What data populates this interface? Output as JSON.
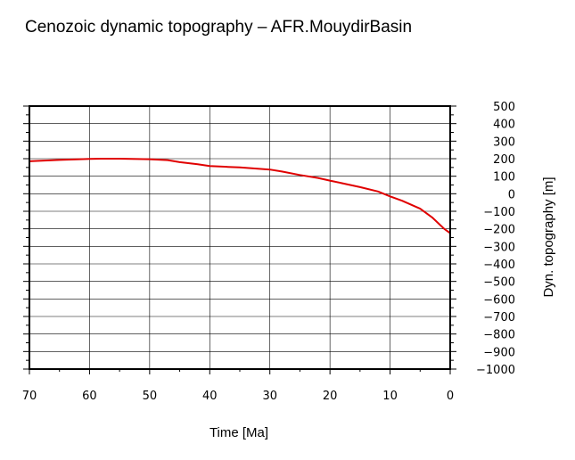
{
  "chart_data": {
    "type": "line",
    "title": "Cenozoic dynamic topography – AFR.MouydirBasin",
    "xlabel": "Time [Ma]",
    "ylabel": "Dyn. topography [m]",
    "xlim": [
      70,
      0
    ],
    "ylim": [
      -1000,
      500
    ],
    "x_ticks": [
      70,
      60,
      50,
      40,
      30,
      20,
      10,
      0
    ],
    "x_tick_labels": [
      "70",
      "60",
      "50",
      "40",
      "30",
      "20",
      "10",
      "0"
    ],
    "y_ticks": [
      500,
      400,
      300,
      200,
      100,
      0,
      -100,
      -200,
      -300,
      -400,
      -500,
      -600,
      -700,
      -800,
      -900,
      -1000
    ],
    "y_tick_labels": [
      "500",
      "400",
      "300",
      "200",
      "100",
      "0",
      "−100",
      "−200",
      "−300",
      "−400",
      "−500",
      "−600",
      "−700",
      "−800",
      "−900",
      "−1000"
    ],
    "grid": true,
    "series": [
      {
        "color": "#e00000",
        "x": [
          70,
          65,
          60,
          58,
          55,
          50,
          47,
          45,
          42,
          40,
          37,
          35,
          32,
          30,
          28,
          25,
          22,
          20,
          18,
          15,
          12,
          10,
          8,
          5,
          3,
          1,
          0
        ],
        "y": [
          185,
          193,
          199,
          200,
          200,
          197,
          192,
          180,
          168,
          158,
          153,
          150,
          143,
          138,
          127,
          107,
          90,
          75,
          60,
          38,
          13,
          -15,
          -40,
          -85,
          -135,
          -200,
          -225
        ]
      }
    ]
  }
}
